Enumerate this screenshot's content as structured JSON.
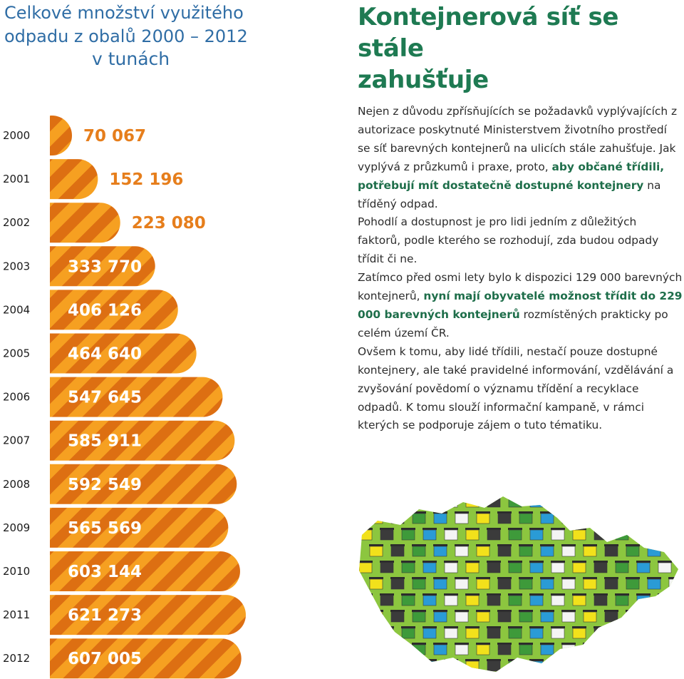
{
  "chart_title": {
    "line1": "Celkové množství využitého",
    "line2": "odpadu z obalů 2000 – 2012",
    "unit": "v tunách"
  },
  "chart_data": {
    "type": "bar",
    "title": "Celkové množství využitého odpadu z obalů 2000 – 2012",
    "ylabel": "v tunách",
    "categories": [
      "2000",
      "2001",
      "2002",
      "2003",
      "2004",
      "2005",
      "2006",
      "2007",
      "2008",
      "2009",
      "2010",
      "2011",
      "2012"
    ],
    "values": [
      70067,
      152196,
      223080,
      333770,
      406126,
      464640,
      547645,
      585911,
      592549,
      565569,
      603144,
      621273,
      607005
    ],
    "value_labels": [
      "70 067",
      "152 196",
      "223 080",
      "333 770",
      "406 126",
      "464 640",
      "547 645",
      "585 911",
      "592 549",
      "565 569",
      "603 144",
      "621 273",
      "607 005"
    ],
    "orientation": "horizontal",
    "xlim": [
      0,
      621273
    ]
  },
  "colors": {
    "bar_light": "#f6a021",
    "bar_dark": "#dd6f12",
    "label_orange": "#e67e1c",
    "label_white": "#ffffff",
    "title_blue": "#2f6da5",
    "heading_green": "#1e7a52",
    "map_green": "#8cc63f"
  },
  "article": {
    "heading_line1": "Kontejnerová síť se stále",
    "heading_line2": "zahušťuje",
    "p1_a": "Nejen z důvodu zpřísňujících se požadavků vyplývajících z autorizace poskytnuté Ministerstvem životního prostředí se síť barevných kontejnerů na ulicích stále zahušťuje. Jak vyplývá z průzkumů i praxe, proto, ",
    "p1_b": "aby občané třídili, potřebují mít dostatečně dostupné kontejnery",
    "p1_c": " na tříděný odpad.",
    "p2": "Pohodlí a dostupnost je pro lidi jedním z důležitých faktorů, podle kterého se rozhodují, zda budou odpady třídit či ne.",
    "p3_a": "Zatímco před osmi lety bylo k dispozici 129 000 barevných kontejnerů, ",
    "p3_b": "nyní mají obyvatelé možnost třídit do 229 000 barevných kontejnerů",
    "p3_c": " rozmístěných prakticky po celém území ČR.",
    "p4": "Ovšem k tomu, aby lidé třídili, nestačí pouze dostupné kontejnery, ale také pravidelné informování, vzdělávání a zvyšování povědomí o významu třídění a recyklace odpadů. K tomu slouží informační kampaně, v rámci kterých se podporuje zájem o tuto tématiku."
  },
  "map": {
    "container_colors": [
      "#f2e11b",
      "#2a9bd6",
      "#3b3b3b",
      "#f4f4f4",
      "#3e9a3a"
    ]
  }
}
